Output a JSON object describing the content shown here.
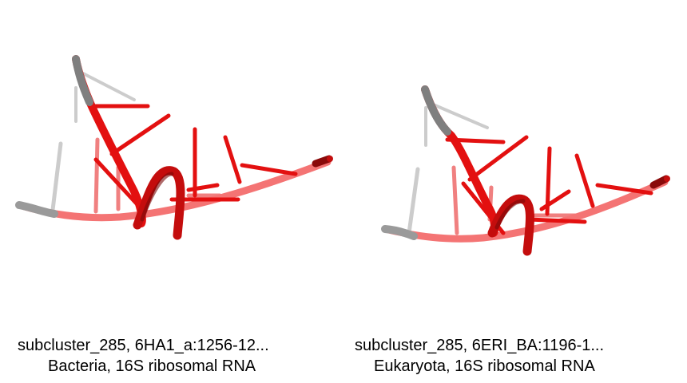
{
  "panels": [
    {
      "subcluster_label": "subcluster_285, 6HA1_a:1256-12...",
      "organism_label": "Bacteria, 16S ribosomal RNA"
    },
    {
      "subcluster_label": "subcluster_285, 6ERI_BA:1196-1...",
      "organism_label": "Eukaryota, 16S ribosomal RNA"
    }
  ],
  "colors": {
    "backbone_red": "#e31010",
    "backbone_dark_red": "#8a0a0a",
    "backbone_light_red": "#f07070",
    "backbone_gray": "#808080",
    "stick_light_gray": "#cccccc",
    "background": "#ffffff"
  }
}
